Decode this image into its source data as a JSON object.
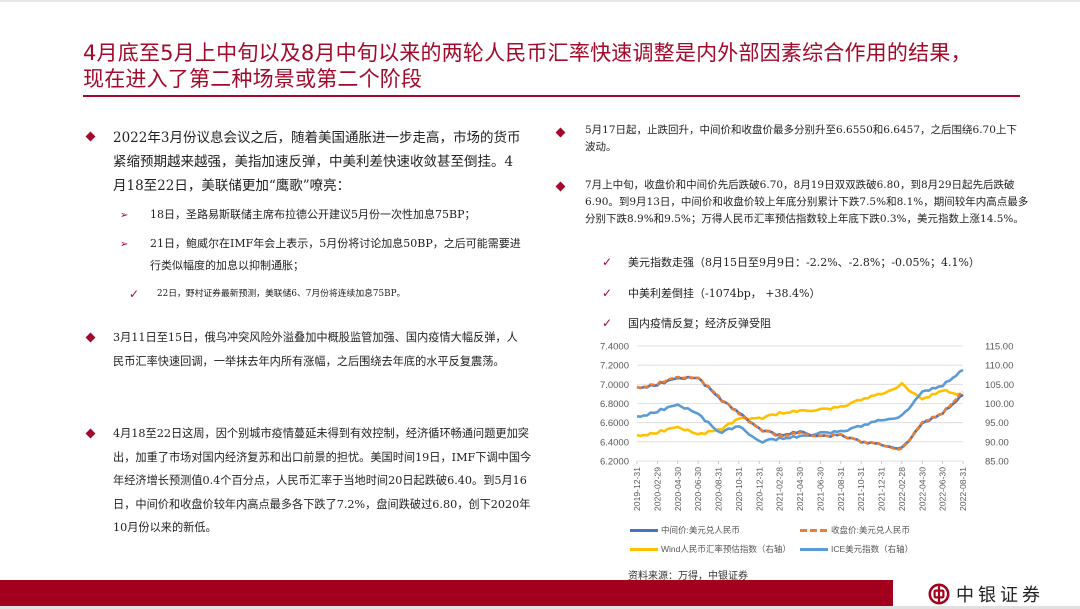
{
  "slide": {
    "title_line1": "4月底至5月上中旬以及8月中旬以来的两轮人民币汇率快速调整是内外部因素综合作用的结果，",
    "title_line2": "现在进入了第二种场景或第二个阶段"
  },
  "left": {
    "bullet1": {
      "text": "2022年3月份议息会议之后，随着美国通胀进一步走高，市场的货币紧缩预期越来越强，美指加速反弹，中美利差快速收敛甚至倒挂。4月18至22日，美联储更加“鹰歌”嘹亮：",
      "subs": [
        {
          "marker": "➢",
          "text": "18日，圣路易斯联储主席布拉德公开建议5月份一次性加息75BP；"
        },
        {
          "marker": "➢",
          "text": "21日，鲍威尔在IMF年会上表示，5月份将讨论加息50BP，之后可能需要进行类似幅度的加息以抑制通胀；"
        },
        {
          "marker": "✓",
          "text": "22日，野村证券最新预测，美联储6、7月份将连续加息75BP。"
        }
      ]
    },
    "bullet2": {
      "text": "3月11日至15日，俄乌冲突风险外溢叠加中概股监管加强、国内疫情大幅反弹，人民币汇率快速回调，一举抹去年内所有涨幅，之后围绕去年底的水平反复震荡。"
    },
    "bullet3": {
      "text": "4月18至22日这周，因个别城市疫情蔓延未得到有效控制，经济循环畅通问题更加突出，加重了市场对国内经济复苏和出口前景的担忧。美国时间19日，IMF下调中国今年经济增长预测值0.4个百分点，人民币汇率于当地时间20日起跌破6.40。到5月16日，中间价和收盘价较年内高点最多各下跌了7.2%，盘间跌破过6.80，创下2020年10月份以来的新低。"
    }
  },
  "right": {
    "bullet1": {
      "text": "5月17日起，止跌回升，中间价和收盘价最多分别升至6.6550和6.6457，之后围绕6.70上下波动。"
    },
    "bullet2": {
      "text": "7月上中旬，收盘价和中间价先后跌破6.70，8月19日双双跌破6.80，到8月29日起先后跌破6.90。到9月13日，中间价和收盘价较上年底分别累计下跌7.5%和8.1%，期间较年内高点最多分别下跌8.9%和9.5%；万得人民币汇率预估指数较上年底下跌0.3%，美元指数上涨14.5%。"
    },
    "checks": [
      {
        "marker": "✓",
        "text": "美元指数走强（8月15日至9月9日：-2.2%、-2.8%；-0.05%；4.1%）"
      },
      {
        "marker": "✓",
        "text": "中美利差倒挂（-1074bp， +38.4%）"
      },
      {
        "marker": "✓",
        "text": "国内疫情反复；经济反弹受阻"
      }
    ]
  },
  "chart_data": {
    "type": "line",
    "title": "",
    "xlabel": "",
    "ylabel": "",
    "x": [
      "2019-12-31",
      "2020-02-29",
      "2020-04-30",
      "2020-06-30",
      "2020-08-31",
      "2020-10-31",
      "2020-12-31",
      "2021-02-28",
      "2021-04-30",
      "2021-06-30",
      "2021-08-31",
      "2021-10-31",
      "2021-12-31",
      "2022-02-28",
      "2022-04-30",
      "2022-06-30",
      "2022-08-31"
    ],
    "y_left": {
      "min": 6.2,
      "max": 7.4,
      "ticks": [
        "6.2000",
        "6.4000",
        "6.6000",
        "6.8000",
        "7.0000",
        "7.2000",
        "7.4000"
      ]
    },
    "y_right": {
      "min": 85,
      "max": 115,
      "ticks": [
        "85.00",
        "90.00",
        "95.00",
        "100.00",
        "105.00",
        "110.00",
        "115.00"
      ]
    },
    "grid": true,
    "legend_position": "bottom",
    "series": [
      {
        "name": "中间价:美元兑人民币",
        "axis": "left",
        "color": "#4472c4",
        "style": "solid",
        "values": [
          6.96,
          7.0,
          7.07,
          7.07,
          6.86,
          6.7,
          6.53,
          6.47,
          6.5,
          6.46,
          6.47,
          6.4,
          6.37,
          6.33,
          6.59,
          6.7,
          6.89
        ]
      },
      {
        "name": "收盘价:美元兑人民币",
        "axis": "left",
        "color": "#ed7d31",
        "style": "dashed",
        "values": [
          6.96,
          7.01,
          7.08,
          7.07,
          6.87,
          6.69,
          6.53,
          6.46,
          6.49,
          6.46,
          6.47,
          6.4,
          6.37,
          6.32,
          6.6,
          6.7,
          6.92
        ]
      },
      {
        "name": "Wind人民币汇率预估指数（右轴）",
        "axis": "right",
        "color": "#ffc000",
        "style": "solid",
        "values": [
          91.5,
          92.5,
          94.0,
          92.0,
          93.0,
          96.0,
          96.0,
          97.5,
          98.0,
          98.5,
          99.0,
          101.0,
          102.5,
          105.0,
          101.0,
          103.5,
          102.0
        ]
      },
      {
        "name": "ICE美元指数（右轴）",
        "axis": "right",
        "color": "#5b9bd5",
        "style": "solid",
        "values": [
          96.4,
          98.0,
          99.8,
          97.4,
          92.4,
          94.0,
          89.9,
          90.9,
          91.3,
          92.4,
          92.6,
          94.1,
          95.7,
          96.7,
          103.0,
          104.7,
          108.7
        ]
      }
    ],
    "source": "资料来源：万得，中银证券"
  },
  "chart_labels": {
    "y_left": [
      "7.4000",
      "7.2000",
      "7.0000",
      "6.8000",
      "6.6000",
      "6.4000",
      "6.2000"
    ],
    "y_right": [
      "115.00",
      "110.00",
      "105.00",
      "100.00",
      "95.00",
      "90.00",
      "85.00"
    ],
    "legend": [
      "中间价:美元兑人民币",
      "收盘价:美元兑人民币",
      "Wind人民币汇率预估指数（右轴）",
      "ICE美元指数（右轴）"
    ]
  },
  "footer": {
    "source": "资料来源：万得，中银证券",
    "brand": "中银证券",
    "accent_color": "#a3001e"
  }
}
